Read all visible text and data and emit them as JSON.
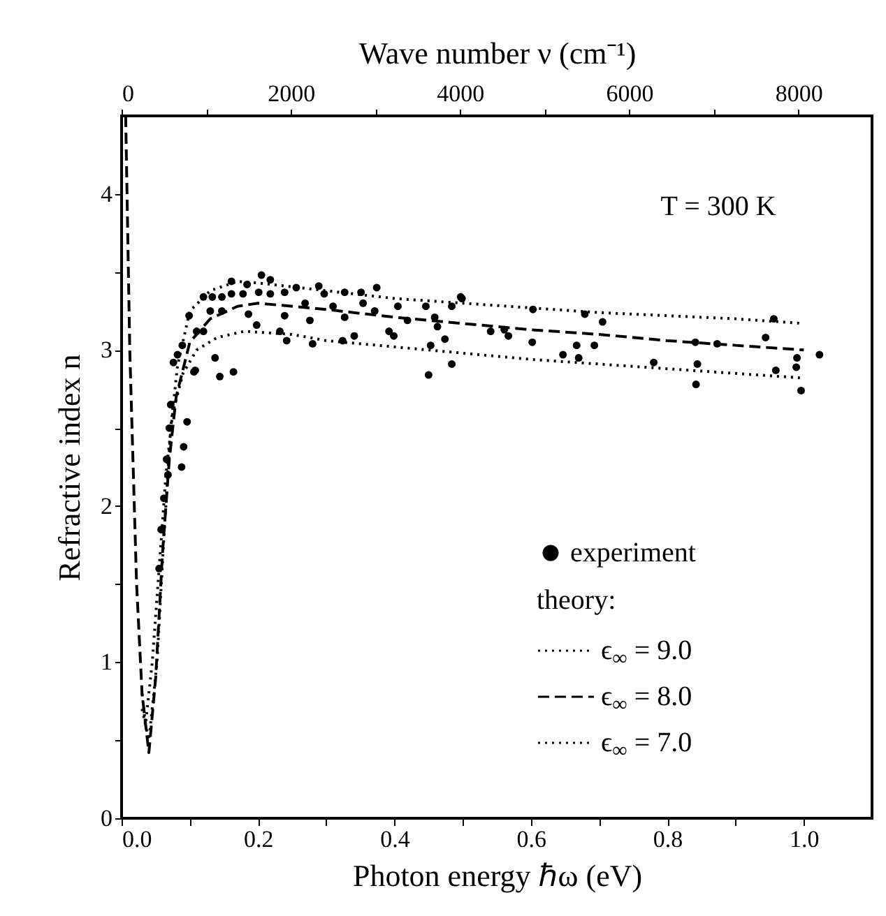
{
  "chart_data": {
    "type": "scatter",
    "xlabel": "Photon energy  ℏω  (eV)",
    "ylabel": "Refractive index  n",
    "x2label": "Wave number  ν  (cm⁻¹)",
    "xlim": [
      0,
      1.1
    ],
    "xticks": [
      {
        "value": 0,
        "label": "0.0"
      },
      {
        "value": 0.1,
        "label": null
      },
      0.2,
      {
        "value": 0.3,
        "label": null
      },
      0.4,
      {
        "value": 0.5,
        "label": null
      },
      0.6,
      {
        "value": 0.7,
        "label": null
      },
      0.8,
      {
        "value": 0.9,
        "label": null
      },
      {
        "value": 1,
        "label": "1.0"
      }
    ],
    "ylim": [
      0,
      4.5
    ],
    "yticks": [
      0,
      {
        "value": 0.5,
        "label": null
      },
      1,
      {
        "value": 1.5,
        "label": null
      },
      2,
      {
        "value": 2.5,
        "label": null
      },
      3,
      {
        "value": 3.5,
        "label": null
      },
      4
    ],
    "x2lim": [
      0,
      8870
    ],
    "x2ticks": [
      0,
      {
        "value": 1000,
        "label": null
      },
      2000,
      {
        "value": 3000,
        "label": null
      },
      4000,
      {
        "value": 5000,
        "label": null
      },
      6000,
      {
        "value": 7000,
        "label": null
      },
      8000
    ],
    "grid": false,
    "legend": "bottom right",
    "legend_title": "theory:",
    "annotations": [
      "T = 300 K"
    ],
    "series": [
      {
        "name": "experiment",
        "marker": "circle",
        "color": "#000000",
        "x": [
          0.055,
          0.058,
          0.062,
          0.066,
          0.068,
          0.07,
          0.072,
          0.076,
          0.082,
          0.089,
          0.096,
          0.091,
          0.088,
          0.106,
          0.108,
          0.144,
          0.164,
          0.137,
          0.099,
          0.11,
          0.12,
          0.12,
          0.133,
          0.13,
          0.147,
          0.147,
          0.161,
          0.161,
          0.178,
          0.184,
          0.186,
          0.198,
          0.201,
          0.205,
          0.218,
          0.218,
          0.239,
          0.239,
          0.232,
          0.242,
          0.256,
          0.269,
          0.276,
          0.28,
          0.289,
          0.297,
          0.31,
          0.327,
          0.327,
          0.324,
          0.341,
          0.351,
          0.354,
          0.371,
          0.374,
          0.392,
          0.399,
          0.405,
          0.419,
          0.446,
          0.453,
          0.45,
          0.459,
          0.463,
          0.474,
          0.484,
          0.484,
          0.497,
          0.499,
          0.541,
          0.561,
          0.567,
          0.603,
          0.602,
          0.647,
          0.667,
          0.67,
          0.679,
          0.693,
          0.705,
          0.78,
          0.841,
          0.844,
          0.842,
          0.873,
          0.944,
          0.956,
          0.959,
          0.989,
          0.99,
          0.996,
          1.023
        ],
        "values": [
          1.6,
          1.85,
          2.05,
          2.3,
          2.2,
          2.5,
          2.65,
          2.92,
          2.97,
          3.03,
          2.54,
          2.38,
          2.25,
          2.86,
          2.87,
          2.83,
          2.86,
          2.95,
          3.22,
          3.12,
          3.12,
          3.34,
          3.34,
          3.25,
          3.25,
          3.34,
          3.44,
          3.36,
          3.36,
          3.42,
          3.23,
          3.16,
          3.37,
          3.48,
          3.45,
          3.36,
          3.37,
          3.22,
          3.12,
          3.06,
          3.4,
          3.3,
          3.19,
          3.04,
          3.41,
          3.36,
          3.28,
          3.37,
          3.21,
          3.06,
          3.09,
          3.37,
          3.3,
          3.25,
          3.4,
          3.12,
          3.09,
          3.28,
          3.19,
          3.28,
          3.03,
          2.84,
          3.21,
          3.15,
          3.07,
          2.91,
          3.28,
          3.34,
          3.33,
          3.12,
          3.13,
          3.09,
          3.26,
          3.05,
          2.97,
          3.03,
          2.95,
          3.23,
          3.03,
          3.18,
          2.92,
          3.05,
          2.91,
          2.78,
          3.04,
          3.08,
          3.2,
          2.87,
          2.89,
          2.95,
          2.74,
          2.97
        ]
      },
      {
        "name": "ϵ$_{∞}$ = 9.0",
        "type": "line",
        "line_style": "dotted",
        "color": "#000000",
        "x": [
          0.03,
          0.04,
          0.052,
          0.062,
          0.072,
          0.082,
          0.1,
          0.13,
          0.17,
          0.2,
          0.3,
          0.4,
          0.5,
          0.6,
          0.7,
          0.8,
          0.9,
          1.0
        ],
        "values": [
          0.7,
          0.5,
          1.0,
          1.8,
          2.5,
          2.9,
          3.25,
          3.38,
          3.44,
          3.43,
          3.38,
          3.33,
          3.3,
          3.27,
          3.24,
          3.22,
          3.2,
          3.17
        ]
      },
      {
        "name": "ϵ$_{∞}$ = 8.0",
        "type": "line",
        "line_style": "dashed",
        "color": "#000000",
        "x": [
          0.006,
          0.012,
          0.022,
          0.03,
          0.04,
          0.05,
          0.06,
          0.07,
          0.08,
          0.1,
          0.13,
          0.17,
          0.2,
          0.3,
          0.4,
          0.5,
          0.6,
          0.7,
          0.8,
          0.9,
          1.0
        ],
        "values": [
          4.5,
          3.0,
          1.5,
          0.8,
          0.42,
          0.9,
          1.7,
          2.3,
          2.7,
          3.05,
          3.2,
          3.28,
          3.3,
          3.26,
          3.21,
          3.17,
          3.13,
          3.1,
          3.06,
          3.03,
          3.0
        ]
      },
      {
        "name": "ϵ$_{∞}$ = 7.0",
        "type": "line",
        "line_style": "dotted",
        "color": "#000000",
        "x": [
          0.03,
          0.035,
          0.045,
          0.055,
          0.065,
          0.075,
          0.09,
          0.11,
          0.14,
          0.18,
          0.25,
          0.3,
          0.4,
          0.5,
          0.6,
          0.7,
          0.8,
          0.9,
          1.0
        ],
        "values": [
          0.8,
          0.6,
          1.0,
          1.6,
          2.2,
          2.6,
          2.85,
          3.0,
          3.08,
          3.12,
          3.1,
          3.06,
          3.02,
          2.98,
          2.94,
          2.91,
          2.88,
          2.85,
          2.82
        ]
      }
    ]
  }
}
